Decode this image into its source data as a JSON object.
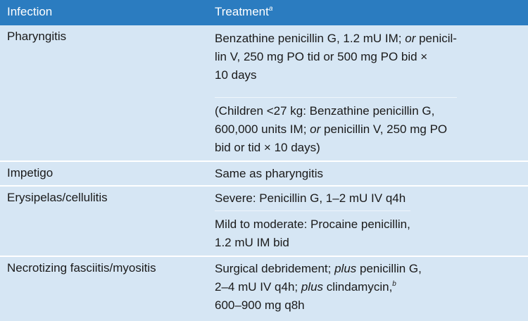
{
  "table": {
    "header": {
      "infection": "Infection",
      "treatment": "Treatment",
      "treatment_note": "a"
    },
    "rows": [
      {
        "infection": "Pharyngitis",
        "treatment": [
          [
            [
              "Benzathine penicillin G, 1.2 mU IM; ",
              "or",
              " penicil-"
            ],
            [
              "lin V, 250 mg PO tid or 500 mg PO bid ×"
            ],
            [
              "10 days"
            ]
          ],
          [
            [
              "(Children <27 kg: Benzathine penicillin G,"
            ],
            [
              "600,000 units IM; ",
              "or",
              " penicillin V, 250 mg PO"
            ],
            [
              "bid or tid × 10 days)"
            ]
          ]
        ]
      },
      {
        "infection": "Impetigo",
        "treatment": [
          [
            [
              "Same as pharyngitis"
            ]
          ]
        ]
      },
      {
        "infection": "Erysipelas/cellulitis",
        "treatment": [
          [
            [
              "Severe: Penicillin G, 1–2 mU IV q4h"
            ]
          ],
          [
            [
              "Mild to moderate: Procaine penicillin,"
            ],
            [
              "1.2 mU IM bid"
            ]
          ]
        ]
      },
      {
        "infection": "Necrotizing fasciitis/myositis",
        "treatment": [
          [
            [
              "Surgical debridement; ",
              "plus",
              " penicillin G,"
            ],
            [
              "2–4 mU IV q4h; ",
              "plus",
              " clindamycin,",
              "b"
            ],
            [
              "600–900 mg q8h"
            ]
          ]
        ]
      }
    ]
  }
}
